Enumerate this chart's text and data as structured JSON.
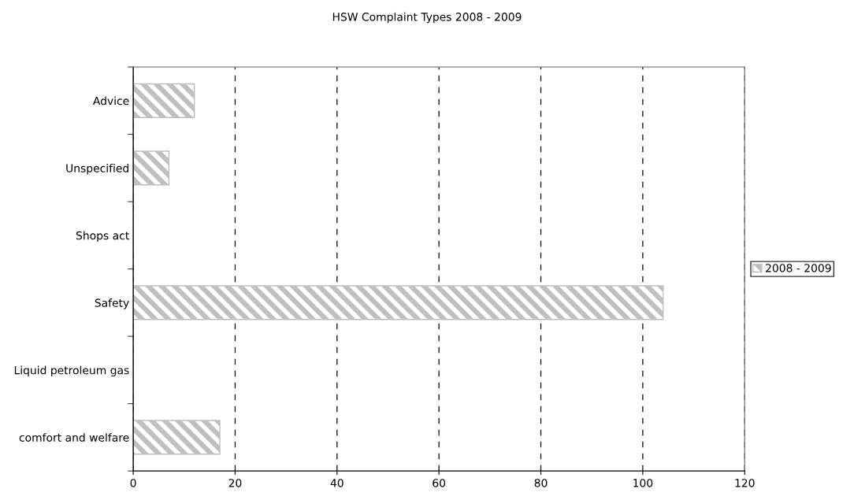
{
  "chart_data": {
    "type": "bar",
    "orientation": "horizontal",
    "title": "HSW Complaint Types 2008 - 2009",
    "categories": [
      "Advice",
      "Unspecified",
      "Shops act",
      "Safety",
      "Liquid petroleum gas",
      "comfort and welfare"
    ],
    "series": [
      {
        "name": "2008 - 2009",
        "color": "#c0c0c0",
        "values": [
          12,
          7,
          0,
          104,
          0,
          17
        ]
      }
    ],
    "xlim": [
      0,
      120
    ],
    "xticks": [
      0,
      20,
      40,
      60,
      80,
      100,
      120
    ],
    "grid": "x",
    "line_style": "dashed",
    "legend": "right"
  }
}
